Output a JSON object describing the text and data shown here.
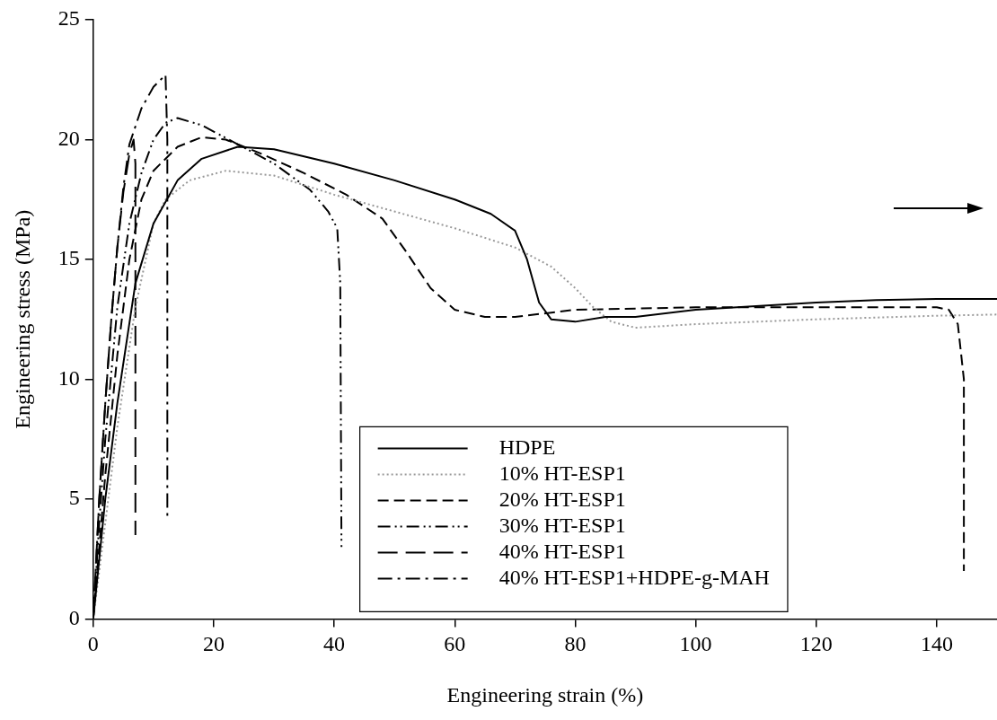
{
  "chart_data": {
    "type": "line",
    "xlabel": "Engineering strain (%)",
    "ylabel": "Engineering stress (MPa)",
    "xlim": [
      0,
      150
    ],
    "xticks": [
      0,
      20,
      40,
      60,
      80,
      100,
      120,
      140
    ],
    "ylim": [
      0,
      25
    ],
    "yticks": [
      0,
      5,
      10,
      15,
      20,
      25
    ],
    "legend": "bottom",
    "marker": "none",
    "series": [
      {
        "name": "HDPE",
        "color": "#000000",
        "line_style": "solid",
        "x": [
          0,
          2,
          4,
          7,
          10,
          14,
          18,
          24,
          30,
          40,
          50,
          60,
          66,
          70,
          72,
          74,
          76,
          80,
          85,
          90,
          100,
          110,
          120,
          130,
          140,
          150
        ],
        "values": [
          0,
          5,
          9,
          14,
          16.5,
          18.3,
          19.2,
          19.7,
          19.6,
          19.0,
          18.3,
          17.5,
          16.9,
          16.2,
          15,
          13.2,
          12.5,
          12.4,
          12.6,
          12.6,
          12.9,
          13.05,
          13.2,
          13.3,
          13.35,
          13.35
        ]
      },
      {
        "name": "10% HT-ESP1",
        "color": "#999999",
        "line_style": "dotted",
        "x": [
          0,
          2,
          4,
          7,
          10,
          12,
          16,
          22,
          30,
          40,
          50,
          60,
          70,
          76,
          80,
          83,
          86,
          90,
          100,
          120,
          140,
          150
        ],
        "values": [
          0,
          4,
          8,
          13,
          16.5,
          17.5,
          18.3,
          18.7,
          18.5,
          17.7,
          17.0,
          16.3,
          15.5,
          14.7,
          13.8,
          13.0,
          12.4,
          12.15,
          12.3,
          12.5,
          12.65,
          12.7
        ]
      },
      {
        "name": "20% HT-ESP1",
        "color": "#000000",
        "line_style": "dashed",
        "x": [
          0,
          2,
          4,
          6,
          8,
          10,
          14,
          18,
          22,
          28,
          35,
          42,
          48,
          52,
          56,
          60,
          65,
          70,
          80,
          100,
          120,
          140,
          142,
          143.5,
          144.5,
          144.5
        ],
        "values": [
          0,
          6,
          11,
          15,
          17.5,
          18.7,
          19.7,
          20.1,
          20.0,
          19.4,
          18.6,
          17.7,
          16.7,
          15.3,
          13.8,
          12.9,
          12.6,
          12.6,
          12.9,
          13.0,
          13.0,
          13.0,
          12.9,
          12.3,
          10,
          2
        ]
      },
      {
        "name": "30% HT-ESP1",
        "color": "#000000",
        "line_style": "dashdotdot",
        "x": [
          0,
          1,
          2,
          4,
          6,
          8,
          10,
          12,
          14,
          18,
          24,
          30,
          36,
          39,
          40.5,
          41,
          41.2
        ],
        "values": [
          0,
          4,
          7.5,
          13,
          16.5,
          18.6,
          20.0,
          20.7,
          20.9,
          20.6,
          19.8,
          19.0,
          17.9,
          17,
          16.3,
          14,
          3
        ]
      },
      {
        "name": "40% HT-ESP1",
        "color": "#000000",
        "line_style": "longdash",
        "x": [
          0,
          1,
          2,
          3,
          4,
          5,
          6,
          6.7,
          7,
          7
        ],
        "values": [
          0,
          5,
          9,
          12.5,
          15.5,
          17.8,
          19.4,
          20.0,
          19,
          3.5
        ]
      },
      {
        "name": "40% HT-ESP1+HDPE-g-MAH",
        "color": "#000000",
        "line_style": "dashdot",
        "x": [
          0,
          1,
          2,
          3,
          4,
          5,
          6,
          8,
          10,
          12,
          12.3,
          12.3
        ],
        "values": [
          0,
          5,
          9,
          12.5,
          15.5,
          18,
          19.8,
          21.3,
          22.2,
          22.7,
          20,
          4.2
        ]
      }
    ]
  }
}
